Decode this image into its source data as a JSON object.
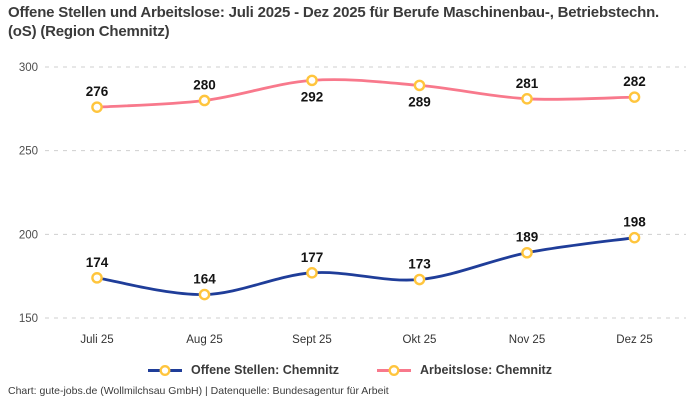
{
  "title": "Offene Stellen und Arbeitslose: Juli 2025 - Dez 2025 für Berufe Maschinenbau-, Betriebstechn.(oS) (Region Chemnitz)",
  "footer": "Chart: gute-jobs.de (Wollmilchsau GmbH) | Datenquelle: Bundesagentur für Arbeit",
  "chart_data": {
    "type": "line",
    "title": "Offene Stellen und Arbeitslose: Juli 2025 - Dez 2025 für Berufe Maschinenbau-, Betriebstechn.(oS) (Region Chemnitz)",
    "categories": [
      "Juli 25",
      "Aug 25",
      "Sept 25",
      "Okt 25",
      "Nov 25",
      "Dez 25"
    ],
    "series": [
      {
        "name": "Offene Stellen: Chemnitz",
        "values": [
          174,
          164,
          177,
          173,
          189,
          198
        ],
        "color": "#1F3D99",
        "label_placement": [
          "above",
          "above",
          "above",
          "above",
          "above",
          "above"
        ]
      },
      {
        "name": "Arbeitslose: Chemnitz",
        "values": [
          276,
          280,
          292,
          289,
          281,
          282
        ],
        "color": "#F8798C",
        "label_placement": [
          "above",
          "above",
          "below",
          "below",
          "above",
          "above"
        ]
      }
    ],
    "marker": {
      "fill": "#ffffff",
      "stroke": "#FFC53D"
    },
    "y_ticks": [
      150,
      200,
      250,
      300
    ],
    "ylim": [
      150,
      300
    ],
    "grid": "dashed-horizontal",
    "grid_color": "#cfcfcf",
    "legend_position": "bottom",
    "xlabel": "",
    "ylabel": ""
  }
}
